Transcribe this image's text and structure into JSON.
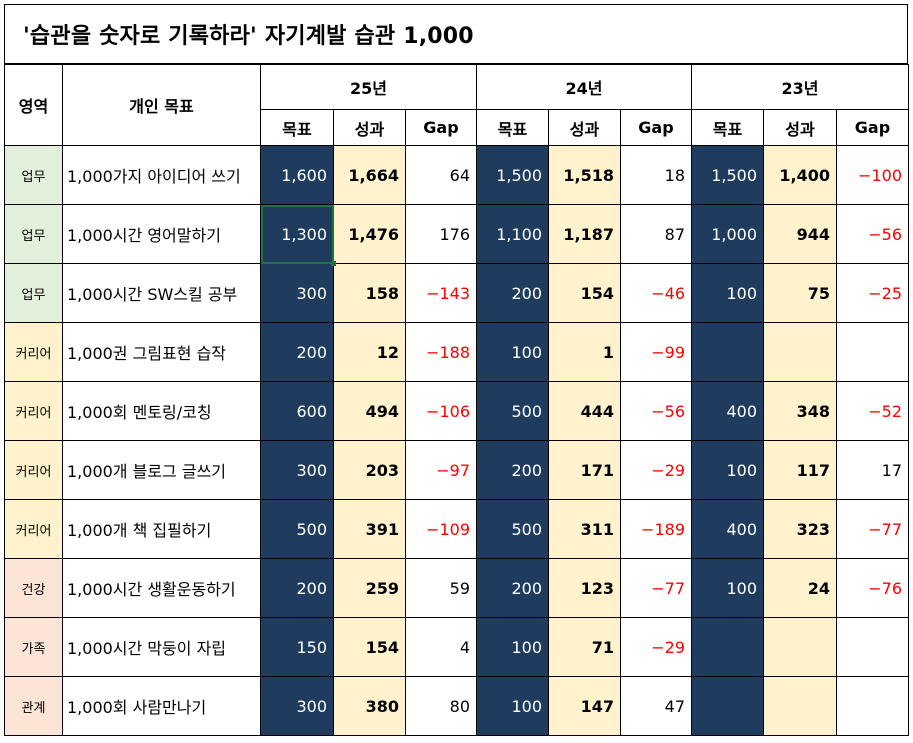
{
  "title": "'습관을 숫자로 기록하라'  자기계발 습관 1,000",
  "headers": {
    "area": "영역",
    "goal": "개인 목표",
    "years": [
      "25년",
      "24년",
      "23년"
    ],
    "sub": [
      "목표",
      "성과",
      "Gap"
    ]
  },
  "rows": [
    {
      "area": "업무",
      "area_color": "#e2efda",
      "goal": "1,000가지 아이디어 쓰기",
      "y25": {
        "t": "1,600",
        "r": "1,664",
        "g": "64"
      },
      "y24": {
        "t": "1,500",
        "r": "1,518",
        "g": "18"
      },
      "y23": {
        "t": "1,500",
        "r": "1,400",
        "g": "−100"
      }
    },
    {
      "area": "업무",
      "area_color": "#e2efda",
      "goal": "1,000시간 영어말하기",
      "y25": {
        "t": "1,300",
        "r": "1,476",
        "g": "176"
      },
      "y24": {
        "t": "1,100",
        "r": "1,187",
        "g": "87"
      },
      "y23": {
        "t": "1,000",
        "r": "944",
        "g": "−56"
      }
    },
    {
      "area": "업무",
      "area_color": "#e2efda",
      "goal": "1,000시간 SW스킬 공부",
      "y25": {
        "t": "300",
        "r": "158",
        "g": "−143"
      },
      "y24": {
        "t": "200",
        "r": "154",
        "g": "−46"
      },
      "y23": {
        "t": "100",
        "r": "75",
        "g": "−25"
      }
    },
    {
      "area": "커리어",
      "area_color": "#fff2cc",
      "goal": "1,000권 그림표현 습작",
      "y25": {
        "t": "200",
        "r": "12",
        "g": "−188"
      },
      "y24": {
        "t": "100",
        "r": "1",
        "g": "−99"
      },
      "y23": {
        "t": "",
        "r": "",
        "g": ""
      }
    },
    {
      "area": "커리어",
      "area_color": "#fff2cc",
      "goal": "1,000회 멘토링/코칭",
      "y25": {
        "t": "600",
        "r": "494",
        "g": "−106"
      },
      "y24": {
        "t": "500",
        "r": "444",
        "g": "−56"
      },
      "y23": {
        "t": "400",
        "r": "348",
        "g": "−52"
      }
    },
    {
      "area": "커리어",
      "area_color": "#fff2cc",
      "goal": "1,000개 블로그 글쓰기",
      "y25": {
        "t": "300",
        "r": "203",
        "g": "−97"
      },
      "y24": {
        "t": "200",
        "r": "171",
        "g": "−29"
      },
      "y23": {
        "t": "100",
        "r": "117",
        "g": "17"
      }
    },
    {
      "area": "커리어",
      "area_color": "#fff2cc",
      "goal": "1,000개 책 집필하기",
      "y25": {
        "t": "500",
        "r": "391",
        "g": "−109"
      },
      "y24": {
        "t": "500",
        "r": "311",
        "g": "−189"
      },
      "y23": {
        "t": "400",
        "r": "323",
        "g": "−77"
      }
    },
    {
      "area": "건강",
      "area_color": "#fce4d6",
      "goal": "1,000시간 생활운동하기",
      "y25": {
        "t": "200",
        "r": "259",
        "g": "59"
      },
      "y24": {
        "t": "200",
        "r": "123",
        "g": "−77"
      },
      "y23": {
        "t": "100",
        "r": "24",
        "g": "−76"
      }
    },
    {
      "area": "가족",
      "area_color": "#fce4d6",
      "goal": "1,000시간 막둥이 자립",
      "y25": {
        "t": "150",
        "r": "154",
        "g": "4"
      },
      "y24": {
        "t": "100",
        "r": "71",
        "g": "−29"
      },
      "y23": {
        "t": "",
        "r": "",
        "g": ""
      }
    },
    {
      "area": "관계",
      "area_color": "#fce4d6",
      "goal": "1,000회 사람만나기",
      "y25": {
        "t": "300",
        "r": "380",
        "g": "80"
      },
      "y24": {
        "t": "100",
        "r": "147",
        "g": "47"
      },
      "y23": {
        "t": "",
        "r": "",
        "g": ""
      }
    }
  ],
  "colors": {
    "target_fill": "#1f3c5e",
    "result_fill": "#fff2cc",
    "negative_text": "#ff0000",
    "selection_border": "#217346"
  }
}
